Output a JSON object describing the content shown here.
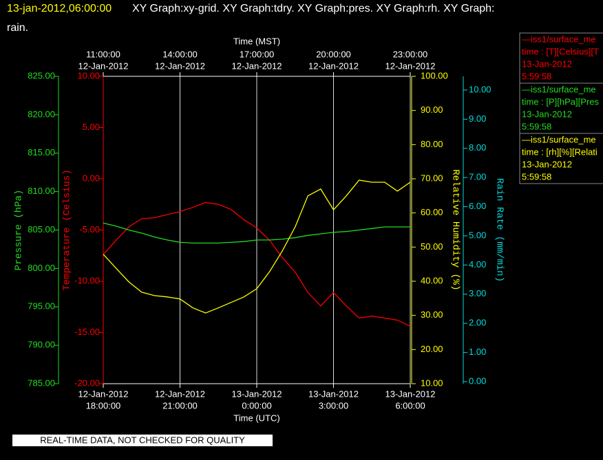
{
  "chart_data": {
    "type": "line",
    "title": {
      "time": "13-jan-2012,06:00:00",
      "line1": "XY Graph:xy-grid.  XY Graph:tdry.  XY Graph:pres.  XY Graph:rh.  XY Graph:",
      "line2": "rain."
    },
    "xlabel": "Time (UTC)",
    "x2label": "Time (MST)",
    "xlim": [
      "12-Jan-2012 18:00:00",
      "13-Jan-2012 6:00:00"
    ],
    "xticks": [
      {
        "value": "12-Jan-2012 18:00:00",
        "label": [
          "12-Jan-2012",
          "18:00:00"
        ]
      },
      {
        "value": "12-Jan-2012 21:00:00",
        "label": [
          "12-Jan-2012",
          "21:00:00"
        ]
      },
      {
        "value": "13-Jan-2012 0:00:00",
        "label": [
          "13-Jan-2012",
          "0:00:00"
        ]
      },
      {
        "value": "13-Jan-2012 3:00:00",
        "label": [
          "13-Jan-2012",
          "3:00:00"
        ]
      },
      {
        "value": "13-Jan-2012 6:00:00",
        "label": [
          "13-Jan-2012",
          "6:00:00"
        ]
      }
    ],
    "x2ticks": [
      {
        "value": "12-Jan-2012 18:00:00",
        "label": [
          "11:00:00",
          "12-Jan-2012"
        ]
      },
      {
        "value": "12-Jan-2012 21:00:00",
        "label": [
          "14:00:00",
          "12-Jan-2012"
        ]
      },
      {
        "value": "13-Jan-2012 0:00:00",
        "label": [
          "17:00:00",
          "12-Jan-2012"
        ]
      },
      {
        "value": "13-Jan-2012 3:00:00",
        "label": [
          "20:00:00",
          "12-Jan-2012"
        ]
      },
      {
        "value": "13-Jan-2012 6:00:00",
        "label": [
          "23:00:00",
          "12-Jan-2012"
        ]
      }
    ],
    "grid": true,
    "axes": [
      {
        "label": "Pressure (hPa)",
        "color": "#22dd22",
        "lim": [
          785,
          825
        ],
        "ticks": [
          {
            "value": 785,
            "label": "785.00"
          },
          {
            "value": 790,
            "label": "790.00"
          },
          {
            "value": 795,
            "label": "795.00"
          },
          {
            "value": 800,
            "label": "800.00"
          },
          {
            "value": 805,
            "label": "805.00"
          },
          {
            "value": 810,
            "label": "810.00"
          },
          {
            "value": 815,
            "label": "815.00"
          },
          {
            "value": 820,
            "label": "820.00"
          },
          {
            "value": 825,
            "label": "825.00"
          }
        ]
      },
      {
        "label": "Temperature (Celsius)",
        "color": "#ff0000",
        "lim": [
          -20,
          10
        ],
        "ticks": [
          {
            "value": -20,
            "label": "-20.00"
          },
          {
            "value": -15,
            "label": "-15.00"
          },
          {
            "value": -10,
            "label": "-10.00"
          },
          {
            "value": -5,
            "label": "-5.00"
          },
          {
            "value": 0,
            "label": "0.00"
          },
          {
            "value": 5,
            "label": "5.00"
          },
          {
            "value": 10,
            "label": "10.00"
          }
        ]
      },
      {
        "label": "Relative Humidity (%)",
        "color": "#ffff00",
        "lim": [
          10,
          100
        ],
        "ticks": [
          {
            "value": 10,
            "label": "10.00"
          },
          {
            "value": 20,
            "label": "20.00"
          },
          {
            "value": 30,
            "label": "30.00"
          },
          {
            "value": 40,
            "label": "40.00"
          },
          {
            "value": 50,
            "label": "50.00"
          },
          {
            "value": 60,
            "label": "60.00"
          },
          {
            "value": 70,
            "label": "70.00"
          },
          {
            "value": 80,
            "label": "80.00"
          },
          {
            "value": 90,
            "label": "90.00"
          },
          {
            "value": 100,
            "label": "100.00"
          }
        ]
      },
      {
        "label": "Rain Rate (mm/min)",
        "color": "#00dddd",
        "lim": [
          -0.07,
          10.47
        ],
        "ticks": [
          {
            "value": 0,
            "label": "0.00"
          },
          {
            "value": 1,
            "label": "1.00"
          },
          {
            "value": 2,
            "label": "2.00"
          },
          {
            "value": 3,
            "label": "3.00"
          },
          {
            "value": 4,
            "label": "4.00"
          },
          {
            "value": 5,
            "label": "5.00"
          },
          {
            "value": 6,
            "label": "6.00"
          },
          {
            "value": 7,
            "label": "7.00"
          },
          {
            "value": 8,
            "label": "8.00"
          },
          {
            "value": 9,
            "label": "9.00"
          },
          {
            "value": 10,
            "label": "10.00"
          }
        ]
      }
    ],
    "x": [
      "12-Jan-2012 18:00:00",
      "12-Jan-2012 18:30:00",
      "12-Jan-2012 19:00:00",
      "12-Jan-2012 19:30:00",
      "12-Jan-2012 20:00:00",
      "12-Jan-2012 20:30:00",
      "12-Jan-2012 21:00:00",
      "12-Jan-2012 21:30:00",
      "12-Jan-2012 22:00:00",
      "12-Jan-2012 22:30:00",
      "12-Jan-2012 23:00:00",
      "12-Jan-2012 23:30:00",
      "13-Jan-2012 0:00:00",
      "13-Jan-2012 0:30:00",
      "13-Jan-2012 1:00:00",
      "13-Jan-2012 1:30:00",
      "13-Jan-2012 2:00:00",
      "13-Jan-2012 2:30:00",
      "13-Jan-2012 3:00:00",
      "13-Jan-2012 3:30:00",
      "13-Jan-2012 4:00:00",
      "13-Jan-2012 4:30:00",
      "13-Jan-2012 5:00:00",
      "13-Jan-2012 5:30:00",
      "13-Jan-2012 6:00:00"
    ],
    "series": [
      {
        "name": "—iss1/surface_me",
        "legend_lines": [
          "time : [T][Celsius][T",
          "13-Jan-2012",
          "5:59:58"
        ],
        "color": "#ff0000",
        "axis": 1,
        "values": [
          -7.4,
          -6.0,
          -4.7,
          -3.9,
          -3.8,
          -3.5,
          -3.2,
          -2.8,
          -2.3,
          -2.5,
          -3.0,
          -4.0,
          -4.8,
          -6.0,
          -7.7,
          -9.1,
          -11.1,
          -12.4,
          -11.1,
          -12.4,
          -13.6,
          -13.4,
          -13.6,
          -13.8,
          -14.4
        ]
      },
      {
        "name": "—iss1/surface_me",
        "legend_lines": [
          "time : [P][hPa][Pres",
          "13-Jan-2012",
          "5:59:58"
        ],
        "color": "#22dd22",
        "axis": 0,
        "values": [
          805.9,
          805.5,
          805.0,
          804.6,
          804.1,
          803.7,
          803.4,
          803.3,
          803.3,
          803.3,
          803.4,
          803.5,
          803.7,
          803.7,
          803.8,
          804.0,
          804.3,
          804.5,
          804.7,
          804.8,
          805.0,
          805.2,
          805.4,
          805.4,
          805.4
        ]
      },
      {
        "name": "—iss1/surface_me",
        "legend_lines": [
          "time : [rh][%][Relati",
          "13-Jan-2012",
          "5:59:58"
        ],
        "color": "#ffff00",
        "axis": 2,
        "values": [
          47.9,
          43.8,
          39.8,
          36.8,
          35.8,
          35.4,
          34.8,
          32.2,
          30.7,
          32.2,
          33.8,
          35.4,
          37.8,
          42.8,
          48.9,
          55.9,
          65.0,
          67.0,
          60.9,
          65.0,
          69.6,
          69.0,
          69.0,
          66.4,
          69.0
        ]
      }
    ],
    "footer": "REAL-TIME DATA, NOT CHECKED FOR QUALITY"
  }
}
